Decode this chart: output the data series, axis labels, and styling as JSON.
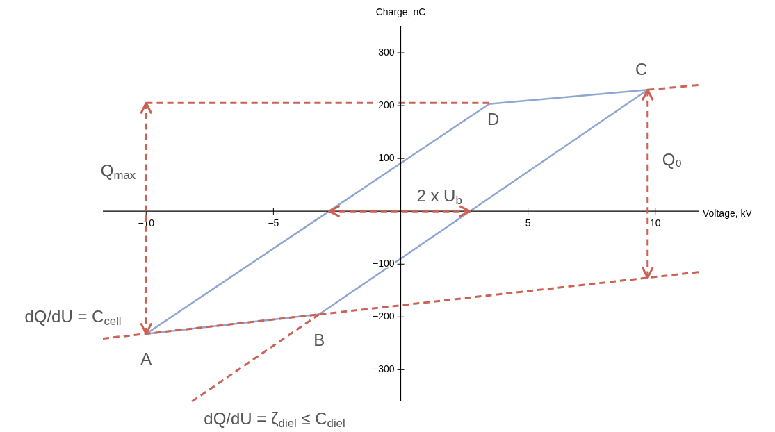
{
  "chart_data": {
    "type": "line",
    "xlabel": "Voltage, kV",
    "ylabel": "Charge, nC",
    "xlim": [
      -11.7,
      11.7
    ],
    "ylim": [
      -360,
      350
    ],
    "xticks": [
      {
        "value": -10,
        "label": "−10"
      },
      {
        "value": -5,
        "label": "−5"
      },
      5,
      10
    ],
    "yticks": [
      {
        "value": -300,
        "label": "−300"
      },
      {
        "value": -200,
        "label": "−200"
      },
      {
        "value": -100,
        "label": "−100"
      },
      100,
      200,
      300
    ],
    "grid": false,
    "series": [
      {
        "color": "#8ea6d2",
        "line_style": "solid",
        "x": [
          -10,
          3.47,
          9.7
        ],
        "values": [
          -232,
          203,
          230
        ]
      },
      {
        "color": "#8ea6d2",
        "line_style": "solid",
        "x": [
          -10,
          -3.2,
          9.7
        ],
        "values": [
          -232,
          -195,
          230
        ]
      },
      {
        "color": "#cc6155",
        "line_style": "dashed",
        "x": [
          -11.7,
          11.7
        ],
        "values": [
          -241,
          -115
        ]
      },
      {
        "color": "#cc6155",
        "line_style": "dashed",
        "x": [
          9.7,
          11.7
        ],
        "values": [
          230,
          239
        ]
      },
      {
        "color": "#cc6155",
        "line_style": "dashed",
        "x": [
          -10,
          3.47
        ],
        "values": [
          205,
          205
        ]
      },
      {
        "color": "#cc6155",
        "line_style": "dashed",
        "x": [
          -8.2,
          -3.2
        ],
        "values": [
          -360,
          -195
        ]
      }
    ],
    "annotations": [
      {
        "text": "A",
        "x": -10,
        "y": -232
      },
      {
        "text": "B",
        "x": -3.2,
        "y": -195
      },
      {
        "text": "C",
        "x": 9.7,
        "y": 230
      },
      {
        "text": "D",
        "x": 3.47,
        "y": 203
      },
      "Q$_{max}$",
      "Q₀",
      {
        "text": "2 x U$_{b}$",
        "x": 2.72,
        "y": 0
      },
      "dQ/dU = C$_{cell}$",
      "dQ/dU = ζ$_{diel}$ ≤ C$_{diel}$"
    ]
  }
}
